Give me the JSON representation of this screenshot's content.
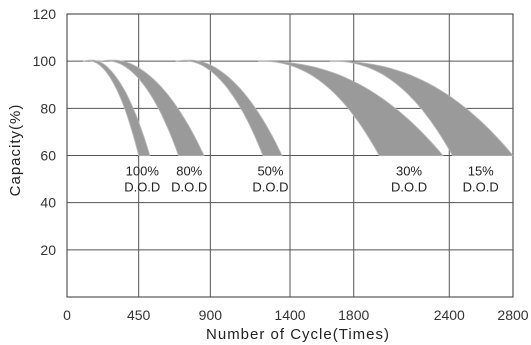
{
  "chart_data": {
    "type": "area",
    "title": "",
    "xlabel": "Number of Cycle(Times)",
    "ylabel": "Capacity(%)",
    "xlim": [
      0,
      2800
    ],
    "ylim": [
      0,
      120
    ],
    "x_ticks": [
      "0",
      "450",
      "900",
      "1400",
      "1800",
      "2400",
      "2800"
    ],
    "x_tick_values": [
      0,
      450,
      900,
      1400,
      1800,
      2400,
      2800
    ],
    "y_ticks": [
      "20",
      "40",
      "60",
      "80",
      "100",
      "120"
    ],
    "y_tick_values": [
      20,
      40,
      60,
      80,
      100,
      120
    ],
    "grid": true,
    "band_color": "#9a9a9a",
    "series": [
      {
        "name": "100% D.O.D",
        "label_line1": "100%",
        "label_line2": "D.O.D",
        "start": [
          100,
          100
        ],
        "lower_peak": [
          250,
          101
        ],
        "upper_peak": [
          260,
          102
        ],
        "end_min": 450,
        "end_max": 520
      },
      {
        "name": "80% D.O.D",
        "label_line1": "80%",
        "label_line2": "D.O.D",
        "start": [
          200,
          100
        ],
        "lower_peak": [
          300,
          101
        ],
        "upper_peak": [
          330,
          102
        ],
        "end_min": 700,
        "end_max": 860
      },
      {
        "name": "50% D.O.D",
        "label_line1": "50%",
        "label_line2": "D.O.D",
        "start": [
          680,
          100
        ],
        "lower_peak": [
          720,
          101
        ],
        "upper_peak": [
          740,
          102
        ],
        "end_min": 1230,
        "end_max": 1350
      },
      {
        "name": "30% D.O.D",
        "label_line1": "30%",
        "label_line2": "D.O.D",
        "start": [
          1200,
          100
        ],
        "end_min": 1960,
        "end_max": 2360
      },
      {
        "name": "15% D.O.D",
        "label_line1": "15%",
        "label_line2": "D.O.D",
        "start": [
          1650,
          100
        ],
        "end_min": 2420,
        "end_max": 2800
      }
    ]
  }
}
